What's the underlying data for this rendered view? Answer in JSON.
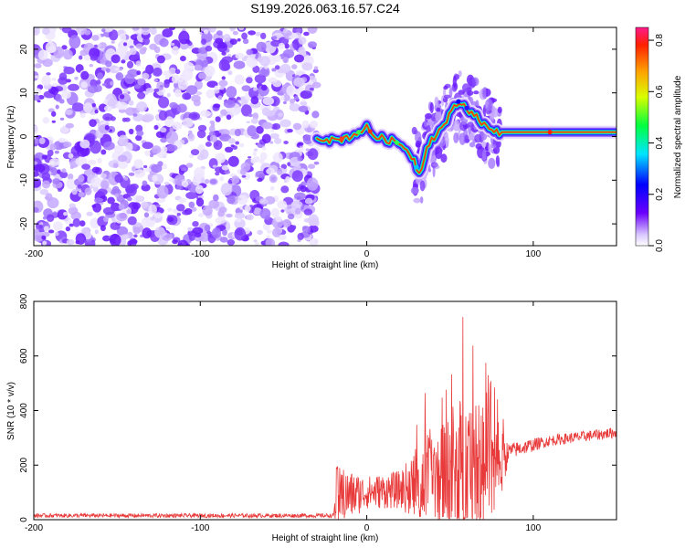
{
  "title": "S199.2026.063.16.57.C24",
  "chart_data": [
    {
      "type": "heatmap",
      "name": "spectrogram",
      "xlabel": "Height of straight line (km)",
      "ylabel": "Frequency (Hz)",
      "xlim": [
        -200,
        150
      ],
      "ylim": [
        -25,
        25
      ],
      "xticks": [
        -200,
        -100,
        0,
        100
      ],
      "yticks": [
        -20,
        -10,
        0,
        10,
        20
      ],
      "colorbar": {
        "label": "Normalized spectral amplitude",
        "range": [
          0,
          0.85
        ],
        "ticks": [
          0.0,
          0.2,
          0.4,
          0.6,
          0.8
        ],
        "tick_labels": [
          "0.0",
          "0.2",
          "0.4",
          "0.6",
          "0.8"
        ],
        "colormap": "rainbow"
      },
      "noise_region_x": [
        -200,
        -30
      ],
      "ridge_line": [
        {
          "x": -30,
          "y": 0
        },
        {
          "x": -20,
          "y": -1
        },
        {
          "x": -10,
          "y": 0
        },
        {
          "x": 0,
          "y": 2
        },
        {
          "x": 5,
          "y": 0
        },
        {
          "x": 15,
          "y": -1
        },
        {
          "x": 22,
          "y": -2
        },
        {
          "x": 28,
          "y": -5
        },
        {
          "x": 32,
          "y": -9
        },
        {
          "x": 36,
          "y": -2
        },
        {
          "x": 45,
          "y": 2
        },
        {
          "x": 55,
          "y": 8
        },
        {
          "x": 65,
          "y": 5
        },
        {
          "x": 75,
          "y": 1
        },
        {
          "x": 100,
          "y": 1
        },
        {
          "x": 150,
          "y": 1
        }
      ]
    },
    {
      "type": "line",
      "name": "snr",
      "xlabel": "Height of straight line (km)",
      "ylabel": "SNR (10 * v/v)",
      "xlim": [
        -200,
        150
      ],
      "ylim": [
        0,
        800
      ],
      "xticks": [
        -200,
        -100,
        0,
        100
      ],
      "yticks": [
        0,
        200,
        400,
        600,
        800
      ],
      "color": "#e83a3a",
      "envelope": [
        {
          "x": -200,
          "base": 15,
          "amp": 15
        },
        {
          "x": -20,
          "base": 15,
          "amp": 15
        },
        {
          "x": -18,
          "base": 80,
          "amp": 230
        },
        {
          "x": 0,
          "base": 100,
          "amp": 120
        },
        {
          "x": 20,
          "base": 110,
          "amp": 140
        },
        {
          "x": 40,
          "base": 150,
          "amp": 400
        },
        {
          "x": 60,
          "base": 170,
          "amp": 620
        },
        {
          "x": 80,
          "base": 180,
          "amp": 350
        },
        {
          "x": 85,
          "base": 250,
          "amp": 60
        },
        {
          "x": 110,
          "base": 290,
          "amp": 40
        },
        {
          "x": 150,
          "base": 320,
          "amp": 40
        }
      ]
    }
  ]
}
